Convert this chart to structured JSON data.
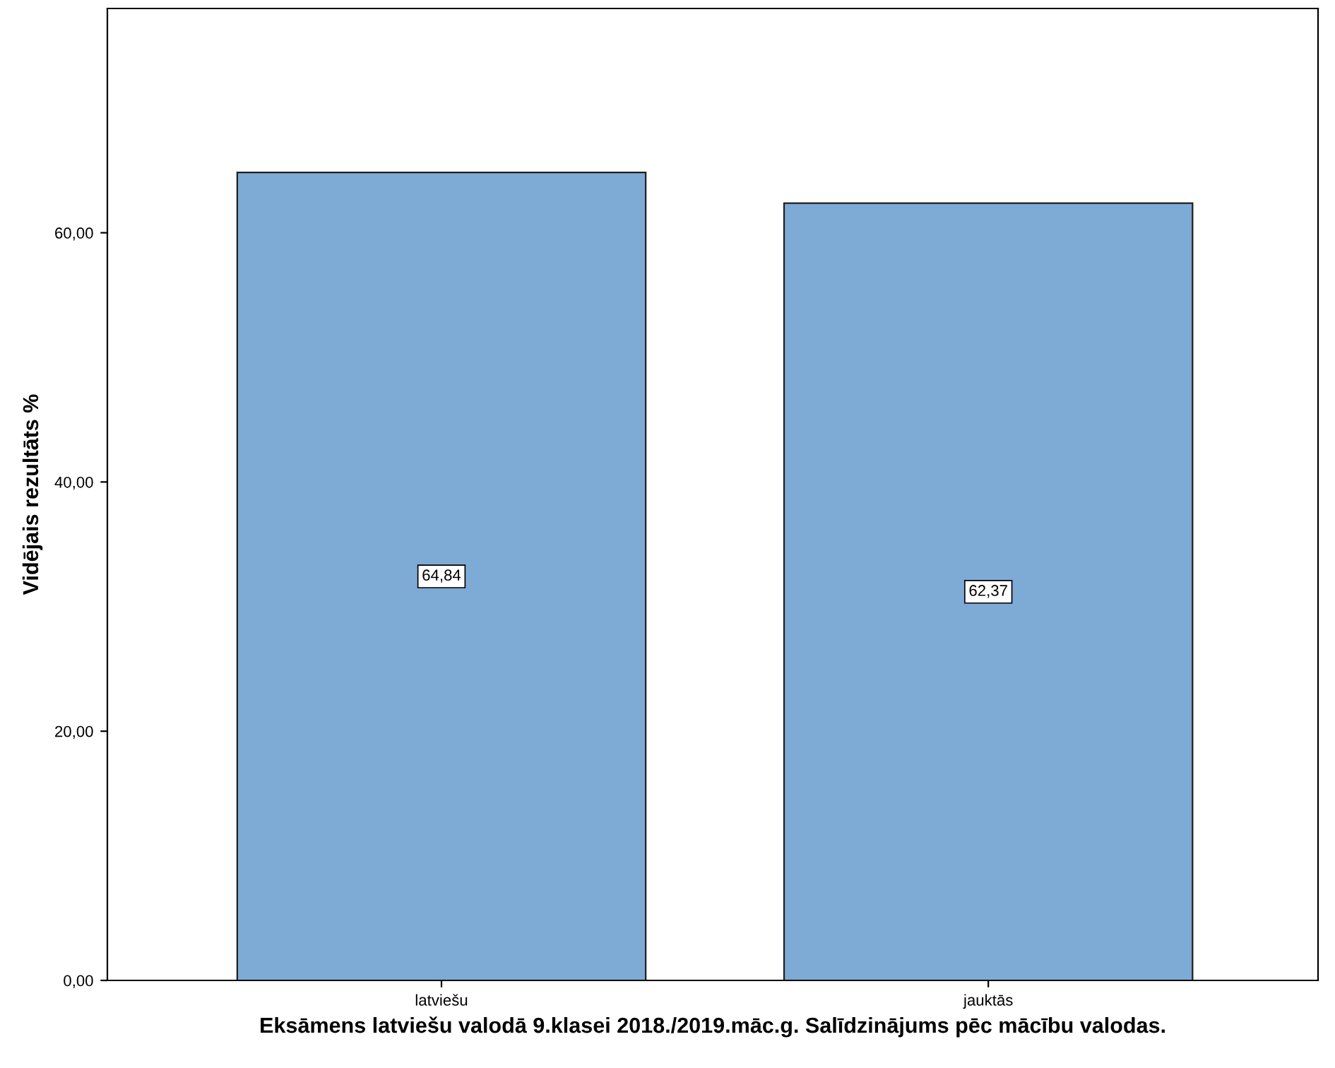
{
  "chart_data": {
    "type": "bar",
    "xlabel": "Eksāmens latviešu valodā 9.klasei 2018./2019.māc.g. Salīdzinājums pēc mācību valodas.",
    "ylabel": "Vidējais rezultāts %",
    "categories": [
      "latviešu",
      "jauktās"
    ],
    "values": [
      64.84,
      62.37
    ],
    "value_labels": [
      "64,84",
      "62,37"
    ],
    "color": "#7eaad6",
    "ylim": [
      0,
      78
    ],
    "yticks": [
      {
        "value": 0,
        "label": "0,00"
      },
      {
        "value": 20,
        "label": "20,00"
      },
      {
        "value": 40,
        "label": "40,00"
      },
      {
        "value": 60,
        "label": "60,00"
      }
    ],
    "grid": false
  }
}
